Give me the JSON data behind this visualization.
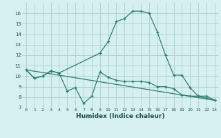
{
  "xlabel": "Humidex (Indice chaleur)",
  "background_color": "#d6f0f0",
  "grid_color": "#aed4d0",
  "line_color": "#2d7a6e",
  "xlim": [
    -0.5,
    23.5
  ],
  "ylim": [
    7,
    17
  ],
  "yticks": [
    7,
    8,
    9,
    10,
    11,
    12,
    13,
    14,
    15,
    16
  ],
  "xticks": [
    0,
    1,
    2,
    3,
    4,
    5,
    6,
    7,
    8,
    9,
    10,
    11,
    12,
    13,
    14,
    15,
    16,
    17,
    18,
    19,
    20,
    21,
    22,
    23
  ],
  "line1_x": [
    0,
    1,
    2,
    3,
    4,
    5,
    6,
    7,
    8,
    9,
    10,
    11,
    12,
    13,
    14,
    15,
    16,
    17,
    18,
    19,
    20,
    21,
    22,
    23
  ],
  "line1_y": [
    10.6,
    9.8,
    10.0,
    10.5,
    10.3,
    8.6,
    8.9,
    7.4,
    8.1,
    10.4,
    9.9,
    9.6,
    9.5,
    9.5,
    9.5,
    9.4,
    9.0,
    9.0,
    8.8,
    8.2,
    8.1,
    8.1,
    7.9,
    7.7
  ],
  "line2_x": [
    0,
    1,
    2,
    3,
    4,
    9,
    10,
    11,
    12,
    13,
    14,
    15,
    16,
    17,
    18,
    19,
    20,
    21,
    22,
    23
  ],
  "line2_y": [
    10.6,
    9.8,
    10.0,
    10.5,
    10.3,
    12.2,
    13.3,
    15.2,
    15.5,
    16.2,
    16.2,
    16.0,
    14.2,
    12.0,
    10.1,
    10.1,
    8.9,
    8.1,
    8.1,
    7.7
  ],
  "line3_x": [
    0,
    23
  ],
  "line3_y": [
    10.6,
    7.7
  ]
}
